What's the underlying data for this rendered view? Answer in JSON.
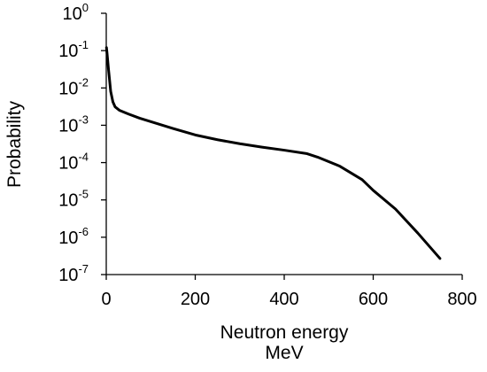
{
  "chart_data": {
    "type": "line",
    "title": "",
    "xlabel": "Neutron energy",
    "xlabel_unit": "MeV",
    "ylabel": "Probability",
    "xlim": [
      0,
      800
    ],
    "ylim": [
      1e-07,
      1
    ],
    "yscale": "log",
    "grid": false,
    "x_ticks": [
      {
        "value": 0,
        "label": "0"
      },
      {
        "value": 200,
        "label": "200"
      },
      {
        "value": 400,
        "label": "400"
      },
      {
        "value": 600,
        "label": "600"
      },
      {
        "value": 800,
        "label": "800"
      }
    ],
    "y_ticks": [
      {
        "value": 1,
        "base": "10",
        "exp": "0"
      },
      {
        "value": 0.1,
        "base": "10",
        "exp": "-1"
      },
      {
        "value": 0.01,
        "base": "10",
        "exp": "-2"
      },
      {
        "value": 0.001,
        "base": "10",
        "exp": "-3"
      },
      {
        "value": 0.0001,
        "base": "10",
        "exp": "-4"
      },
      {
        "value": 1e-05,
        "base": "10",
        "exp": "-5"
      },
      {
        "value": 1e-06,
        "base": "10",
        "exp": "-6"
      },
      {
        "value": 1e-07,
        "base": "10",
        "exp": "-7"
      }
    ],
    "series": [
      {
        "color": "#000000",
        "x": [
          0.5,
          2,
          5,
          10,
          15,
          20,
          30,
          50,
          75,
          100,
          150,
          200,
          250,
          300,
          350,
          400,
          450,
          475,
          525,
          575,
          600,
          650,
          700,
          750
        ],
        "y": [
          0.12,
          0.08,
          0.032,
          0.008,
          0.0042,
          0.0031,
          0.0025,
          0.002,
          0.00155,
          0.00125,
          0.00082,
          0.00055,
          0.00041,
          0.00032,
          0.00026,
          0.000215,
          0.000175,
          0.00014,
          8e-05,
          3.5e-05,
          1.8e-05,
          5.7e-06,
          1.3e-06,
          2.7e-07
        ]
      }
    ]
  }
}
